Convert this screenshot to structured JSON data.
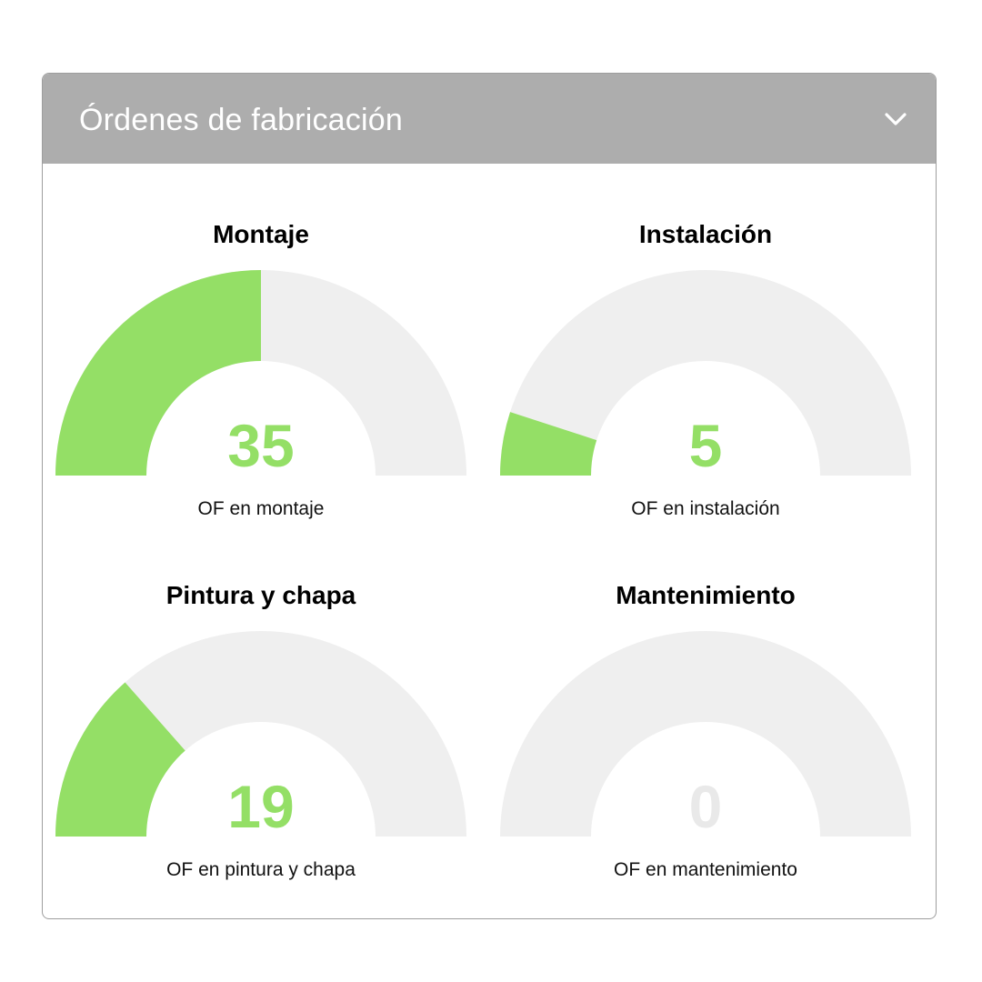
{
  "panel": {
    "title": "Órdenes de fabricación",
    "collapse_icon": "chevron-down-icon"
  },
  "colors": {
    "header_bg": "#adadad",
    "gauge_fill": "#94df66",
    "gauge_track": "#efefef",
    "zero_value": "#e9e9e9"
  },
  "gauges": [
    {
      "id": "montaje",
      "title": "Montaje",
      "value": "35",
      "fraction": 0.5,
      "caption": "OF en montaje"
    },
    {
      "id": "instalacion",
      "title": "Instalación",
      "value": "5",
      "fraction": 0.1,
      "caption": "OF en instalación"
    },
    {
      "id": "pintura",
      "title": "Pintura y chapa",
      "value": "19",
      "fraction": 0.27,
      "caption": "OF en pintura y chapa"
    },
    {
      "id": "mantenimiento",
      "title": "Mantenimiento",
      "value": "0",
      "fraction": 0,
      "caption": "OF en mantenimiento"
    }
  ]
}
